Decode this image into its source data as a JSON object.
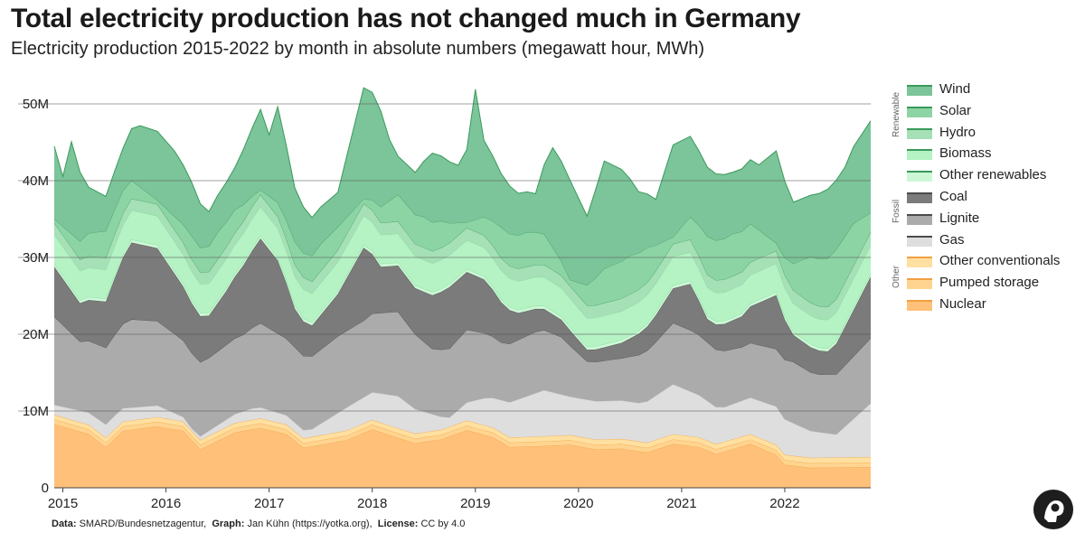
{
  "header": {
    "title": "Total electricity production has not changed much in Germany",
    "subtitle": "Electricity production 2015-2022 by month in absolute numbers (megawatt hour, MWh)"
  },
  "footer": {
    "data_label": "Data:",
    "data_value": "SMARD/Bundesnetzagentur,",
    "graph_label": "Graph:",
    "graph_value": "Jan Kühn (https://yotka.org),",
    "license_label": "License:",
    "license_value": "CC by 4.0"
  },
  "legend": {
    "groups": [
      {
        "label": "Renewable",
        "items": [
          {
            "name": "Wind",
            "color": "#7cc49a"
          },
          {
            "name": "Solar",
            "color": "#8dd4a5"
          },
          {
            "name": "Hydro",
            "color": "#a6e0b6"
          },
          {
            "name": "Biomass",
            "color": "#b5f2c4"
          },
          {
            "name": "Other renewables",
            "color": "#cdf8d6"
          }
        ]
      },
      {
        "label": "Fossil",
        "items": [
          {
            "name": "Coal",
            "color": "#7b7b7b"
          },
          {
            "name": "Lignite",
            "color": "#ababab"
          },
          {
            "name": "Gas",
            "color": "#dedede"
          }
        ]
      },
      {
        "label": "Other",
        "items": [
          {
            "name": "Other conventionals",
            "color": "#ffe0a0"
          },
          {
            "name": "Pumped storage",
            "color": "#ffd490"
          },
          {
            "name": "Nuclear",
            "color": "#ffc07a"
          }
        ]
      }
    ]
  },
  "chart_data": {
    "type": "area",
    "stacked": true,
    "x_start": "2014-12",
    "x_end": "2022-11",
    "interval": "month",
    "x_ticks": [
      "2015",
      "2016",
      "2017",
      "2018",
      "2019",
      "2020",
      "2021",
      "2022"
    ],
    "y_ticks": [
      "0",
      "10M",
      "20M",
      "30M",
      "40M",
      "50M"
    ],
    "y_tick_values": [
      0,
      10000000,
      20000000,
      30000000,
      40000000,
      50000000
    ],
    "ylim": [
      0,
      53000000
    ],
    "unit": "MWh",
    "grid": true,
    "grid_color": "#555555",
    "legend_position": "right",
    "stack_order": [
      "Nuclear",
      "Pumped storage",
      "Other conventionals",
      "Gas",
      "Lignite",
      "Coal",
      "Other renewables",
      "Biomass",
      "Hydro",
      "Solar",
      "Wind"
    ],
    "series": [
      {
        "name": "Nuclear",
        "color": "#ffc07a",
        "anchors": [
          [
            0,
            8.3
          ],
          [
            4,
            7.0
          ],
          [
            6,
            5.3
          ],
          [
            8,
            7.4
          ],
          [
            12,
            8.0
          ],
          [
            15,
            7.4
          ],
          [
            17,
            5.0
          ],
          [
            21,
            7.2
          ],
          [
            24,
            7.8
          ],
          [
            27,
            7.0
          ],
          [
            29,
            5.2
          ],
          [
            34,
            6.2
          ],
          [
            37,
            7.6
          ],
          [
            40,
            6.5
          ],
          [
            42,
            5.8
          ],
          [
            45,
            6.3
          ],
          [
            48,
            7.5
          ],
          [
            51,
            6.6
          ],
          [
            53,
            5.3
          ],
          [
            56,
            5.4
          ],
          [
            60,
            5.6
          ],
          [
            63,
            5.0
          ],
          [
            66,
            5.1
          ],
          [
            69,
            4.6
          ],
          [
            72,
            5.7
          ],
          [
            75,
            5.3
          ],
          [
            77,
            4.4
          ],
          [
            81,
            5.7
          ],
          [
            84,
            4.3
          ],
          [
            85,
            3.0
          ],
          [
            88,
            2.6
          ],
          [
            95,
            2.7
          ]
        ]
      },
      {
        "name": "Pumped storage",
        "color": "#ffd490",
        "anchors": [
          [
            0,
            0.6
          ],
          [
            95,
            0.6
          ]
        ]
      },
      {
        "name": "Other conventionals",
        "color": "#ffe0a0",
        "anchors": [
          [
            0,
            0.6
          ],
          [
            95,
            0.7
          ]
        ]
      },
      {
        "name": "Gas",
        "color": "#dedede",
        "anchors": [
          [
            0,
            1.3
          ],
          [
            7,
            1.8
          ],
          [
            12,
            1.5
          ],
          [
            16,
            0.3
          ],
          [
            23,
            1.5
          ],
          [
            30,
            1.0
          ],
          [
            34,
            3.0
          ],
          [
            40,
            4.2
          ],
          [
            46,
            1.2
          ],
          [
            50,
            3.5
          ],
          [
            57,
            6.0
          ],
          [
            60,
            5.0
          ],
          [
            68,
            5.0
          ],
          [
            72,
            6.5
          ],
          [
            78,
            4.5
          ],
          [
            84,
            5.0
          ],
          [
            88,
            3.5
          ],
          [
            91,
            3.0
          ],
          [
            95,
            7.0
          ]
        ]
      },
      {
        "name": "Lignite",
        "color": "#ababab",
        "anchors": [
          [
            0,
            11.5
          ],
          [
            3,
            9.0
          ],
          [
            6,
            10.0
          ],
          [
            9,
            11.5
          ],
          [
            12,
            11.0
          ],
          [
            15,
            10.0
          ],
          [
            18,
            9.5
          ],
          [
            22,
            10.0
          ],
          [
            24,
            11.0
          ],
          [
            27,
            10.0
          ],
          [
            30,
            9.5
          ],
          [
            33,
            10.0
          ],
          [
            36,
            10.0
          ],
          [
            40,
            11.0
          ],
          [
            44,
            8.5
          ],
          [
            48,
            9.5
          ],
          [
            52,
            7.5
          ],
          [
            56,
            8.0
          ],
          [
            59,
            7.5
          ],
          [
            62,
            5.0
          ],
          [
            66,
            5.5
          ],
          [
            70,
            7.0
          ],
          [
            72,
            8.0
          ],
          [
            74,
            8.0
          ],
          [
            77,
            7.5
          ],
          [
            80,
            7.0
          ],
          [
            84,
            7.5
          ],
          [
            86,
            8.0
          ],
          [
            89,
            7.5
          ],
          [
            95,
            8.5
          ]
        ]
      },
      {
        "name": "Coal",
        "color": "#7b7b7b",
        "anchors": [
          [
            0,
            6.5
          ],
          [
            3,
            5.0
          ],
          [
            6,
            6.0
          ],
          [
            9,
            10.0
          ],
          [
            12,
            9.5
          ],
          [
            15,
            7.0
          ],
          [
            18,
            5.5
          ],
          [
            20,
            7.0
          ],
          [
            24,
            11.0
          ],
          [
            26,
            9.5
          ],
          [
            28,
            5.0
          ],
          [
            30,
            4.0
          ],
          [
            33,
            5.5
          ],
          [
            36,
            9.5
          ],
          [
            38,
            6.0
          ],
          [
            42,
            6.0
          ],
          [
            46,
            8.0
          ],
          [
            50,
            7.0
          ],
          [
            54,
            3.5
          ],
          [
            58,
            2.5
          ],
          [
            62,
            1.5
          ],
          [
            66,
            2.0
          ],
          [
            70,
            3.5
          ],
          [
            72,
            4.5
          ],
          [
            74,
            6.0
          ],
          [
            76,
            3.0
          ],
          [
            80,
            4.0
          ],
          [
            84,
            7.0
          ],
          [
            86,
            3.5
          ],
          [
            90,
            3.0
          ],
          [
            95,
            8.0
          ]
        ]
      },
      {
        "name": "Other renewables",
        "color": "#cdf8d6",
        "anchors": [
          [
            0,
            0.4
          ],
          [
            95,
            0.4
          ]
        ]
      },
      {
        "name": "Biomass",
        "color": "#b5f2c4",
        "anchors": [
          [
            0,
            3.8
          ],
          [
            95,
            3.7
          ]
        ]
      },
      {
        "name": "Hydro",
        "color": "#a6e0b6",
        "anchors": [
          [
            0,
            1.5
          ],
          [
            95,
            1.7
          ]
        ]
      },
      {
        "name": "Solar",
        "color": "#8dd4a5",
        "anchors": [
          [
            0,
            0.5
          ],
          [
            4,
            3.0
          ],
          [
            6,
            3.5
          ],
          [
            8,
            3.0
          ],
          [
            12,
            0.5
          ],
          [
            16,
            3.0
          ],
          [
            19,
            3.5
          ],
          [
            21,
            3.0
          ],
          [
            24,
            0.6
          ],
          [
            28,
            3.0
          ],
          [
            31,
            3.5
          ],
          [
            33,
            3.0
          ],
          [
            36,
            0.6
          ],
          [
            40,
            3.5
          ],
          [
            43,
            4.0
          ],
          [
            45,
            3.5
          ],
          [
            48,
            0.7
          ],
          [
            52,
            4.0
          ],
          [
            55,
            4.5
          ],
          [
            57,
            4.0
          ],
          [
            60,
            0.8
          ],
          [
            64,
            4.5
          ],
          [
            67,
            5.0
          ],
          [
            69,
            4.5
          ],
          [
            72,
            0.9
          ],
          [
            76,
            5.0
          ],
          [
            79,
            5.5
          ],
          [
            81,
            5.0
          ],
          [
            84,
            1.0
          ],
          [
            88,
            6.0
          ],
          [
            91,
            6.5
          ],
          [
            93,
            5.5
          ],
          [
            95,
            2.5
          ]
        ]
      },
      {
        "name": "Wind",
        "color": "#7cc49a",
        "anchors": [
          [
            0,
            9.5
          ],
          [
            1,
            6.5
          ],
          [
            2,
            12.0
          ],
          [
            4,
            6.0
          ],
          [
            6,
            4.5
          ],
          [
            8,
            5.5
          ],
          [
            10,
            8.0
          ],
          [
            12,
            9.0
          ],
          [
            14,
            8.5
          ],
          [
            16,
            7.0
          ],
          [
            18,
            4.5
          ],
          [
            21,
            5.5
          ],
          [
            24,
            10.5
          ],
          [
            25,
            8.0
          ],
          [
            26,
            12.5
          ],
          [
            28,
            7.0
          ],
          [
            30,
            5.0
          ],
          [
            33,
            4.5
          ],
          [
            36,
            14.5
          ],
          [
            37,
            14.0
          ],
          [
            38,
            12.5
          ],
          [
            39,
            8.0
          ],
          [
            40,
            5.0
          ],
          [
            42,
            5.5
          ],
          [
            44,
            9.0
          ],
          [
            47,
            7.5
          ],
          [
            48,
            9.5
          ],
          [
            49,
            17.0
          ],
          [
            50,
            10.0
          ],
          [
            52,
            7.0
          ],
          [
            54,
            5.5
          ],
          [
            56,
            5.0
          ],
          [
            58,
            13.0
          ],
          [
            60,
            13.0
          ],
          [
            62,
            9.0
          ],
          [
            64,
            14.0
          ],
          [
            66,
            12.0
          ],
          [
            68,
            8.0
          ],
          [
            70,
            6.0
          ],
          [
            72,
            12.0
          ],
          [
            74,
            10.5
          ],
          [
            76,
            9.0
          ],
          [
            79,
            8.0
          ],
          [
            82,
            8.5
          ],
          [
            84,
            12.0
          ],
          [
            86,
            8.0
          ],
          [
            88,
            8.0
          ],
          [
            90,
            9.0
          ],
          [
            92,
            9.0
          ],
          [
            95,
            12.0
          ]
        ]
      }
    ]
  }
}
